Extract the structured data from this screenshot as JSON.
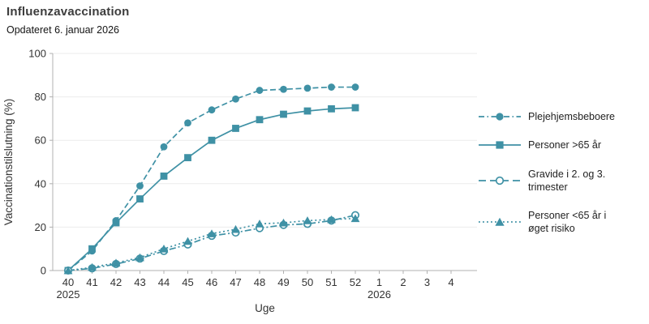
{
  "header": {
    "title": "Influenzavaccination",
    "subtitle": "Opdateret 6. januar 2026"
  },
  "chart_data": {
    "type": "line",
    "title": "Influenzavaccination",
    "subtitle": "Opdateret 6. januar 2026",
    "xlabel": "Uge",
    "ylabel": "Vaccinationstilslutning (%)",
    "ylim": [
      0,
      100
    ],
    "y_ticks": [
      0,
      20,
      40,
      60,
      80,
      100
    ],
    "x": [
      40,
      41,
      42,
      43,
      44,
      45,
      46,
      47,
      48,
      49,
      50,
      51,
      52
    ],
    "x_tick_labels": [
      "40",
      "41",
      "42",
      "43",
      "44",
      "45",
      "46",
      "47",
      "48",
      "49",
      "50",
      "51",
      "52",
      "1",
      "2",
      "3",
      "4"
    ],
    "x_year_labels": [
      {
        "label": "2025",
        "tick_index": 0
      },
      {
        "label": "2026",
        "tick_index": 13
      }
    ],
    "grid": "horizontal",
    "legend_position": "right",
    "series": [
      {
        "name": "Plejehjemsbeboere",
        "legend_lines": [
          "Plejehjemsbeboere"
        ],
        "line_style": "dashed",
        "marker": "filled-circle",
        "values": [
          0,
          9,
          23,
          39,
          57,
          68,
          74,
          79,
          83,
          83.5,
          84,
          84.5,
          84.5
        ]
      },
      {
        "name": "Personer >65 år",
        "legend_lines": [
          "Personer >65 år"
        ],
        "line_style": "solid",
        "marker": "filled-square",
        "values": [
          0,
          10,
          22,
          33,
          43.5,
          52,
          60,
          65.5,
          69.5,
          72,
          73.5,
          74.5,
          75
        ]
      },
      {
        "name": "Gravide i 2. og 3. trimester",
        "legend_lines": [
          "Gravide i 2. og 3. trimester"
        ],
        "line_style": "dashdot",
        "marker": "open-circle",
        "values": [
          0,
          1,
          3,
          5.5,
          9,
          12,
          16,
          17.5,
          19.5,
          21,
          21.5,
          23,
          25.5
        ]
      },
      {
        "name": "Personer <65 år i øget risiko",
        "legend_lines": [
          "Personer <65 år i",
          "øget risiko"
        ],
        "line_style": "dotted",
        "marker": "filled-triangle",
        "values": [
          0,
          1.5,
          3.5,
          6,
          10,
          13.5,
          17,
          19,
          21.5,
          22,
          23,
          23.5,
          24
        ]
      }
    ],
    "colors": {
      "series": "#3f91a5",
      "grid": "#ebebeb",
      "axis": "#b0b0b0",
      "tick_text": "#333333",
      "axis_title": "#333333"
    }
  }
}
